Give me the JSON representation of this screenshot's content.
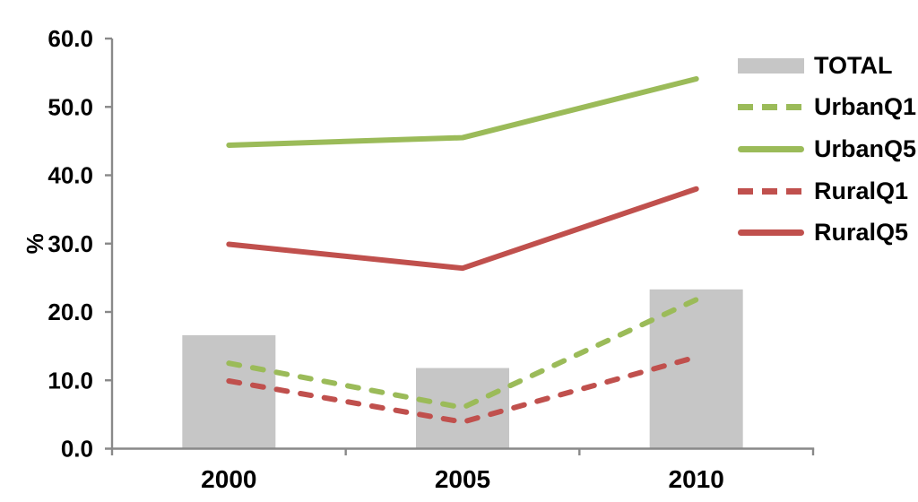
{
  "chart_data": {
    "type": "bar+line",
    "title": "",
    "xlabel": "",
    "ylabel": "%",
    "ylim": [
      0,
      60
    ],
    "ytick_step": 10,
    "ytick_labels": [
      "0.0",
      "10.0",
      "20.0",
      "30.0",
      "40.0",
      "50.0",
      "60.0"
    ],
    "grid": false,
    "legend_position": "right",
    "categories": [
      "2000",
      "2005",
      "2010"
    ],
    "bar_series": {
      "name": "TOTAL",
      "values": [
        16.6,
        11.8,
        23.3
      ],
      "color": "#C6C6C6"
    },
    "line_series": [
      {
        "name": "UrbanQ1",
        "values": [
          12.5,
          6.0,
          21.8
        ],
        "color": "#9BBB59",
        "dashed": true
      },
      {
        "name": "UrbanQ5",
        "values": [
          44.4,
          45.5,
          54.1
        ],
        "color": "#9BBB59",
        "dashed": false
      },
      {
        "name": "RuralQ1",
        "values": [
          9.9,
          3.9,
          13.4
        ],
        "color": "#C0504D",
        "dashed": true
      },
      {
        "name": "RuralQ5",
        "values": [
          29.9,
          26.4,
          38.0
        ],
        "color": "#C0504D",
        "dashed": false
      }
    ]
  },
  "legend": {
    "items": [
      {
        "label": "TOTAL",
        "swatch": "bar",
        "color": "#C6C6C6"
      },
      {
        "label": "UrbanQ1",
        "swatch": "dashed-line",
        "color": "#9BBB59"
      },
      {
        "label": "UrbanQ5",
        "swatch": "solid-line",
        "color": "#9BBB59"
      },
      {
        "label": "RuralQ1",
        "swatch": "dashed-line",
        "color": "#C0504D"
      },
      {
        "label": "RuralQ5",
        "swatch": "solid-line",
        "color": "#C0504D"
      }
    ]
  },
  "colors": {
    "axis": "#898989",
    "bar": "#C6C6C6",
    "green": "#9BBB59",
    "red": "#C0504D",
    "text": "#000000",
    "background": "#FFFFFF"
  }
}
